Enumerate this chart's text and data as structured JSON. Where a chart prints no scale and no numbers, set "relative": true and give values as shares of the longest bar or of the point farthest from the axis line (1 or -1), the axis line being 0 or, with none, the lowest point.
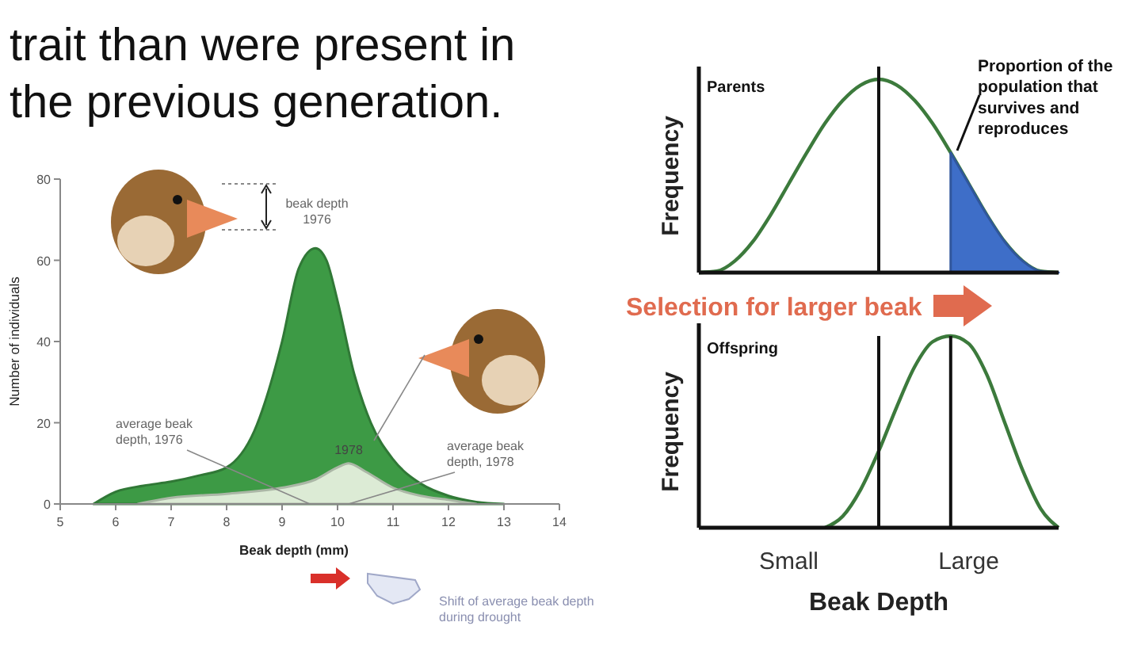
{
  "chart_data": [
    {
      "type": "area",
      "title": "trait than were present in the previous generation.",
      "xlabel": "Beak depth (mm)",
      "ylabel": "Number of individuals",
      "xlim": [
        5,
        14
      ],
      "ylim": [
        0,
        80
      ],
      "xticks": [
        5,
        6,
        7,
        8,
        9,
        10,
        11,
        12,
        13,
        14
      ],
      "yticks": [
        0,
        20,
        40,
        60,
        80
      ],
      "series": [
        {
          "color": "#3d9a45",
          "x": [
            5.6,
            6,
            6.5,
            7,
            7.5,
            8,
            8.5,
            9,
            9.3,
            9.6,
            9.8,
            10,
            10.3,
            10.6,
            11,
            11.5,
            12,
            12.5,
            13
          ],
          "values": [
            0,
            3,
            4.5,
            5.5,
            7,
            9,
            18,
            40,
            58,
            63,
            60,
            50,
            32,
            20,
            11,
            5,
            2,
            0.5,
            0
          ]
        },
        {
          "name": "1978",
          "color": "#dcebd5",
          "x": [
            6.4,
            7,
            8,
            9,
            9.6,
            10,
            10.2,
            10.5,
            11,
            11.5,
            12,
            12.5
          ],
          "values": [
            0,
            1.5,
            2.5,
            4,
            6,
            9,
            10,
            8,
            4,
            2,
            1,
            0
          ]
        }
      ],
      "annotations": [
        "beak depth 1976",
        {
          "text": "average beak depth, 1976",
          "x": 9.5,
          "y": 0
        },
        {
          "text": "average beak depth, 1978",
          "x": 10.2,
          "y": 0
        },
        "Shift of average beak depth during drought"
      ]
    },
    {
      "type": "line",
      "relative": true,
      "ylabel": "Frequency",
      "categories": [
        null,
        null,
        null,
        null,
        null,
        null,
        null,
        null,
        null,
        null,
        null,
        null,
        null,
        null,
        null,
        null,
        null,
        null,
        null,
        null,
        null
      ],
      "series": [
        {
          "color": "#3c7a3c",
          "values": [
            0,
            0.007,
            0.06,
            0.16,
            0.3,
            0.46,
            0.62,
            0.77,
            0.89,
            0.97,
            1,
            0.97,
            0.89,
            0.77,
            0.62,
            0.46,
            0.3,
            0.16,
            0.06,
            0.007,
            0
          ]
        },
        {
          "type": "area",
          "color": "#3e6ec8",
          "values": [
            null,
            null,
            null,
            null,
            null,
            null,
            null,
            null,
            null,
            null,
            null,
            null,
            null,
            null,
            0.62,
            0.46,
            0.3,
            0.16,
            0.06,
            0.007,
            0
          ]
        }
      ],
      "annotations": [
        "Parents",
        "Proportion of the population that survives and reproduces",
        "Selection for larger beak"
      ]
    },
    {
      "type": "line",
      "relative": true,
      "ylabel": "Frequency",
      "xlabel": "Beak Depth",
      "categories": [
        null,
        null,
        null,
        null,
        null,
        "Small",
        null,
        null,
        null,
        null,
        null,
        null,
        null,
        null,
        null,
        "Large",
        null,
        null,
        null,
        null,
        null
      ],
      "series": [
        {
          "color": "#3c7a3c",
          "values": [
            null,
            null,
            null,
            null,
            null,
            null,
            null,
            0,
            0.06,
            0.2,
            0.4,
            0.63,
            0.84,
            0.97,
            1,
            0.96,
            0.8,
            0.55,
            0.3,
            0.1,
            0
          ]
        }
      ],
      "annotations": [
        "Offspring"
      ]
    }
  ]
}
